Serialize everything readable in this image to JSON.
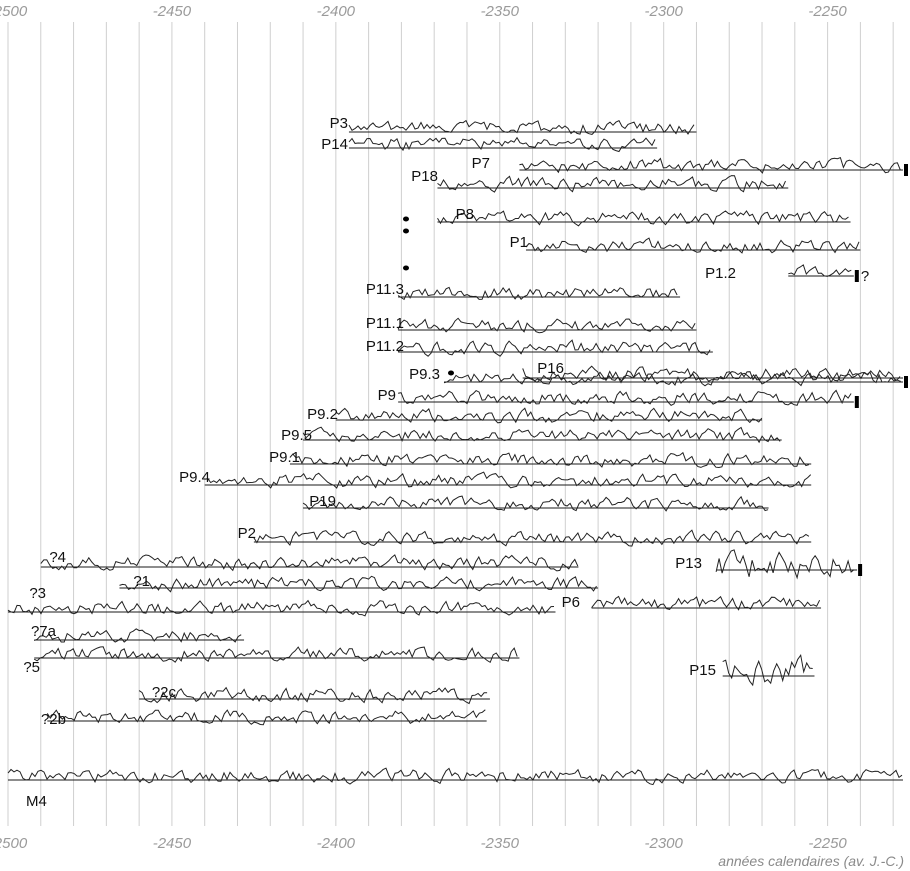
{
  "chart_data": {
    "type": "line",
    "x_unit_label": "années calendaires (av. J.-C.)",
    "x_ticks": [
      -2500,
      -2450,
      -2400,
      -2350,
      -2300,
      -2250
    ],
    "xlim": [
      -2500,
      -2227
    ],
    "minor_grid_step": 10,
    "grid": true,
    "series": [
      {
        "name": "P3",
        "start": -2396,
        "end": -2290,
        "label_side": "left"
      },
      {
        "name": "P14",
        "start": -2396,
        "end": -2302,
        "label_side": "left"
      },
      {
        "name": "P7",
        "start": -2344,
        "end": -2227,
        "label_side": "left",
        "end_marker": "bar"
      },
      {
        "name": "P18",
        "start": -2369,
        "end": -2262,
        "label_side": "left"
      },
      {
        "name": "P8",
        "start": -2369,
        "end": -2243,
        "label_side": "left"
      },
      {
        "name": "P1",
        "start": -2342,
        "end": -2240,
        "label_side": "left"
      },
      {
        "name": "P1.2",
        "start": -2262,
        "end": -2242,
        "label_side": "left",
        "end_marker": "bar",
        "end_note": "?"
      },
      {
        "name": "P11.3",
        "start": -2381,
        "end": -2295,
        "label_side": "left"
      },
      {
        "name": "P11.1",
        "start": -2381,
        "end": -2290,
        "label_side": "left"
      },
      {
        "name": "P11.2",
        "start": -2381,
        "end": -2285,
        "label_side": "left"
      },
      {
        "name": "P9.3",
        "start": -2367,
        "end": -2227,
        "label_side": "left",
        "end_marker": "bar"
      },
      {
        "name": "P16",
        "start": -2343,
        "end": -2227,
        "label_side": "left"
      },
      {
        "name": "P9",
        "start": -2381,
        "end": -2242,
        "label_side": "left",
        "end_marker": "bar"
      },
      {
        "name": "P9.2",
        "start": -2400,
        "end": -2270,
        "label_side": "left"
      },
      {
        "name": "P9.5",
        "start": -2410,
        "end": -2264,
        "label_side": "left"
      },
      {
        "name": "P9.1",
        "start": -2414,
        "end": -2255,
        "label_side": "left"
      },
      {
        "name": "P9.4",
        "start": -2440,
        "end": -2255,
        "label_side": "left"
      },
      {
        "name": "P19",
        "start": -2410,
        "end": -2268,
        "label_side": "left"
      },
      {
        "name": "P2",
        "start": -2425,
        "end": -2255,
        "label_side": "left"
      },
      {
        "name": "?4",
        "start": -2490,
        "end": -2326,
        "label_side": "left"
      },
      {
        "name": "?1",
        "start": -2466,
        "end": -2320,
        "label_side": "left"
      },
      {
        "name": "?3",
        "start": -2500,
        "end": -2333,
        "label_side": "left"
      },
      {
        "name": "P13",
        "start": -2284,
        "end": -2241,
        "label_side": "left",
        "end_marker": "bar"
      },
      {
        "name": "P6",
        "start": -2322,
        "end": -2252,
        "label_side": "left"
      },
      {
        "name": "?7a",
        "start": -2492,
        "end": -2428,
        "label_side": "left"
      },
      {
        "name": "?5",
        "start": -2492,
        "end": -2344,
        "label_side": "left"
      },
      {
        "name": "P15",
        "start": -2282,
        "end": -2254,
        "label_side": "left"
      },
      {
        "name": "?2c",
        "start": -2460,
        "end": -2353,
        "label_side": "left"
      },
      {
        "name": "?2b",
        "start": -2488,
        "end": -2354,
        "label_side": "left"
      },
      {
        "name": "M4",
        "start": -2500,
        "end": -2227,
        "label_side": "below"
      }
    ]
  }
}
